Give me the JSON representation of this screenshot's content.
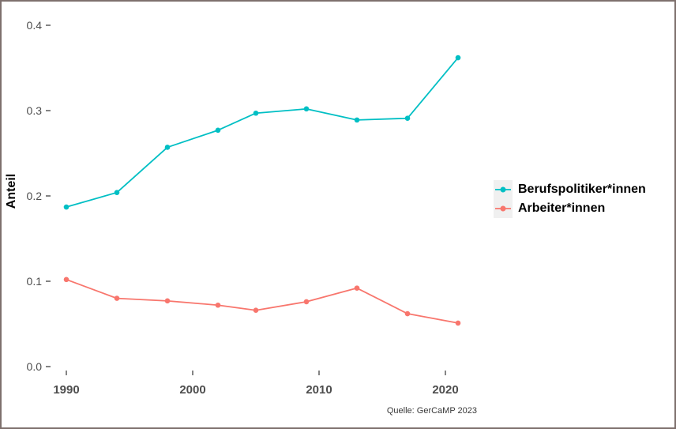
{
  "figure": {
    "caption": "Quelle: GerCaMP 2023"
  },
  "chart_data": {
    "type": "line",
    "title": "",
    "xlabel": "",
    "ylabel": "Anteil",
    "x": [
      1990,
      1994,
      1998,
      2002,
      2005,
      2009,
      2013,
      2017,
      2021
    ],
    "series": [
      {
        "name": "Berufspolitiker*innen",
        "color": "#00BFC4",
        "values": [
          0.187,
          0.204,
          0.257,
          0.277,
          0.297,
          0.302,
          0.289,
          0.291,
          0.362
        ]
      },
      {
        "name": "Arbeiter*innen",
        "color": "#F8766D",
        "values": [
          0.102,
          0.08,
          0.077,
          0.072,
          0.066,
          0.076,
          0.092,
          0.062,
          0.051
        ]
      }
    ],
    "x_ticks": [
      1990,
      2000,
      2010,
      2020
    ],
    "x_tick_labels": [
      "1990",
      "2000",
      "2010",
      "2020"
    ],
    "y_ticks": [
      0.0,
      0.1,
      0.2,
      0.3,
      0.4
    ],
    "y_tick_labels": [
      "0.0",
      "0.1",
      "0.2",
      "0.3",
      "0.4"
    ],
    "xlim": [
      1988.6,
      2023.1
    ],
    "ylim": [
      0,
      0.42
    ],
    "grid": "off",
    "legend_position": "right",
    "point_marker": "circle",
    "axis_text_color": "#4d4d4d",
    "legend_key_background": "#f0f0f0"
  }
}
